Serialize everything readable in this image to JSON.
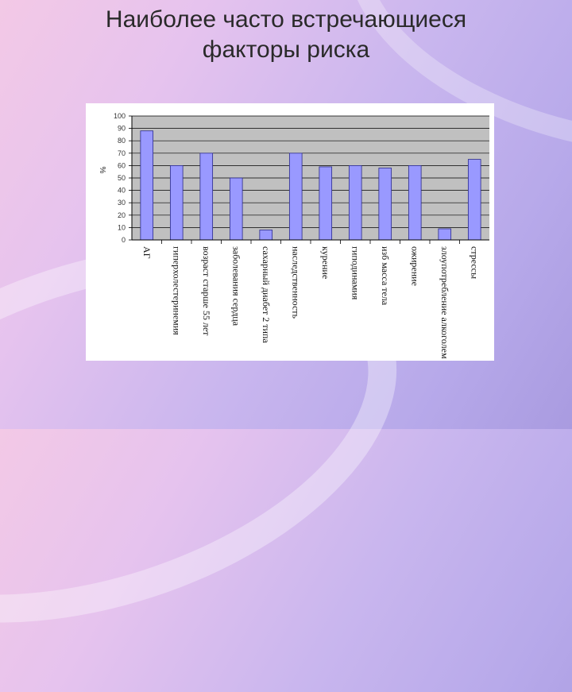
{
  "slide": {
    "title_line1": "Наиболее часто встречающиеся",
    "title_line2": "факторы риска"
  },
  "colors": {
    "plot_bg": "#c0c0c0",
    "bar_fill": "#9999ff",
    "bar_stroke": "#2a2a8a",
    "grid": "#000000"
  },
  "chart_data": {
    "type": "bar",
    "title": "",
    "xlabel": "",
    "ylabel": "%",
    "ylim": [
      0,
      100
    ],
    "yticks": [
      0,
      10,
      20,
      30,
      40,
      50,
      60,
      70,
      80,
      90,
      100
    ],
    "grid": true,
    "categories": [
      "АГ",
      "гиперхолестеринемия",
      "возраст старше 55 лет",
      "заболевания сердца",
      "сахарный диабет 2 типа",
      "наследственность",
      "курение",
      "гиподинамия",
      "изб масса тела",
      "ожирение",
      "злоупотребление алкоголем",
      "стрессы"
    ],
    "values": [
      88,
      60,
      70,
      50,
      8,
      70,
      59,
      60,
      58,
      60,
      9,
      65
    ]
  }
}
